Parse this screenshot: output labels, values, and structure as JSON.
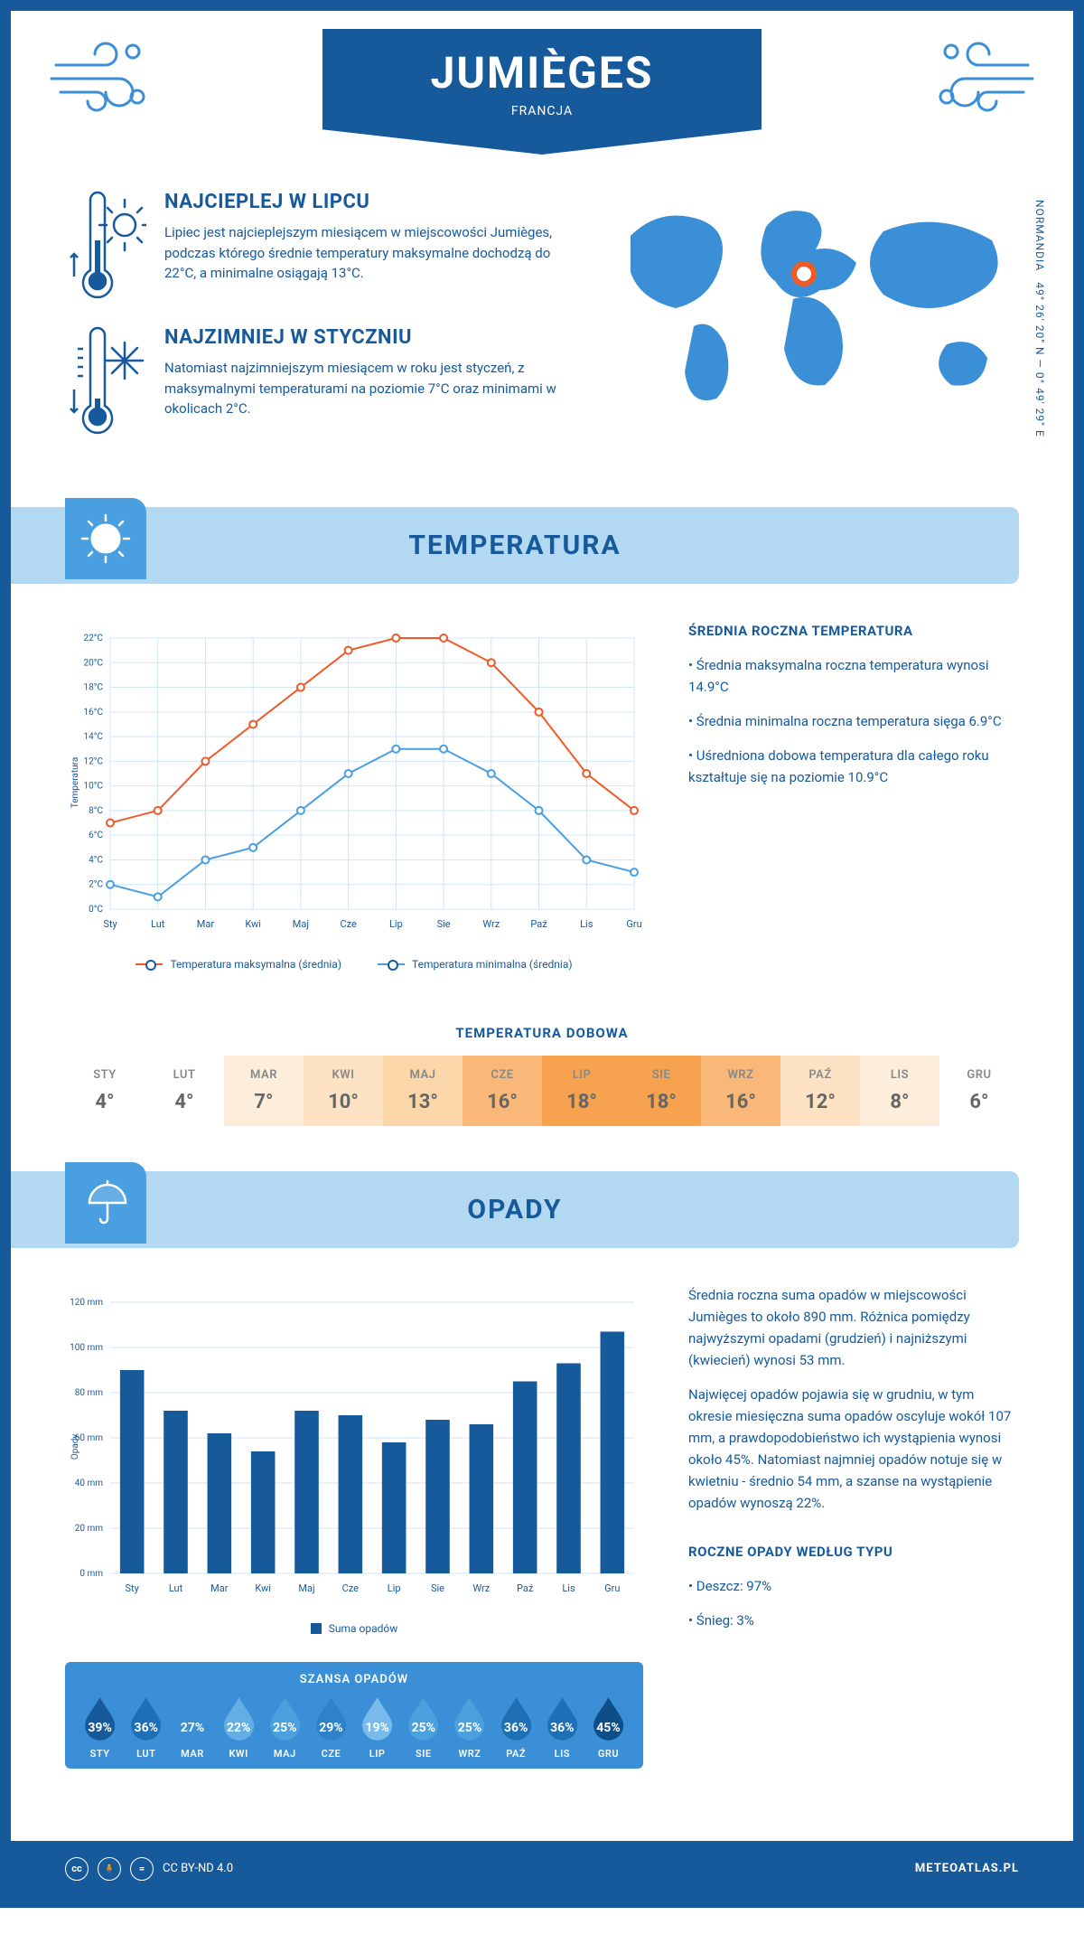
{
  "header": {
    "title": "JUMIÈGES",
    "country": "FRANCJA"
  },
  "intro": {
    "hot": {
      "title": "NAJCIEPLEJ W LIPCU",
      "text": "Lipiec jest najcieplejszym miesiącem w miejscowości Jumièges, podczas którego średnie temperatury maksymalne dochodzą do 22°C, a minimalne osiągają 13°C."
    },
    "cold": {
      "title": "NAJZIMNIEJ W STYCZNIU",
      "text": "Natomiast najzimniejszym miesiącem w roku jest styczeń, z maksymalnymi temperaturami na poziomie 7°C oraz minimami w okolicach 2°C."
    },
    "coords": "49° 26' 20\" N — 0° 49' 29\" E",
    "region": "NORMANDIA"
  },
  "section_temp": {
    "title": "TEMPERATURA",
    "side_title": "ŚREDNIA ROCZNA TEMPERATURA",
    "side_bullets": [
      "• Średnia maksymalna roczna temperatura wynosi 14.9°C",
      "• Średnia minimalna roczna temperatura sięga 6.9°C",
      "• Uśredniona dobowa temperatura dla całego roku kształtuje się na poziomie 10.9°C"
    ],
    "chart": {
      "type": "line",
      "months": [
        "Sty",
        "Lut",
        "Mar",
        "Kwi",
        "Maj",
        "Cze",
        "Lip",
        "Sie",
        "Wrz",
        "Paź",
        "Lis",
        "Gru"
      ],
      "max_values": [
        7,
        8,
        12,
        15,
        18,
        21,
        22,
        22,
        20,
        16,
        11,
        8
      ],
      "min_values": [
        2,
        1,
        4,
        5,
        8,
        11,
        13,
        13,
        11,
        8,
        4,
        3
      ],
      "max_color": "#ef5a28",
      "min_color": "#4a9fe0",
      "grid_color": "#d0e6f5",
      "axis_color": "#175a9c",
      "ylim": [
        0,
        22
      ],
      "ytick_step": 2,
      "ylabel": "Temperatura",
      "label_fontsize": 10,
      "legend_max": "Temperatura maksymalna (średnia)",
      "legend_min": "Temperatura minimalna (średnia)"
    },
    "daily": {
      "title": "TEMPERATURA DOBOWA",
      "months": [
        "STY",
        "LUT",
        "MAR",
        "KWI",
        "MAJ",
        "CZE",
        "LIP",
        "SIE",
        "WRZ",
        "PAŹ",
        "LIS",
        "GRU"
      ],
      "values": [
        "4°",
        "4°",
        "7°",
        "10°",
        "13°",
        "16°",
        "18°",
        "18°",
        "16°",
        "12°",
        "8°",
        "6°"
      ],
      "bg_colors": [
        "#ffffff",
        "#ffffff",
        "#fdeedb",
        "#fde3c4",
        "#fbd6a8",
        "#f9b877",
        "#f6a24f",
        "#f6a24f",
        "#f9b877",
        "#fde3c4",
        "#fdeedb",
        "#ffffff"
      ],
      "text_color": "#888"
    }
  },
  "section_rain": {
    "title": "OPADY",
    "side_p1": "Średnia roczna suma opadów w miejscowości Jumièges to około 890 mm. Różnica pomiędzy najwyższymi opadami (grudzień) i najniższymi (kwiecień) wynosi 53 mm.",
    "side_p2": "Najwięcej opadów pojawia się w grudniu, w tym okresie miesięczna suma opadów oscyluje wokół 107 mm, a prawdopodobieństwo ich wystąpienia wynosi około 45%. Natomiast najmniej opadów notuje się w kwietniu - średnio 54 mm, a szanse na wystąpienie opadów wynoszą 22%.",
    "type_title": "ROCZNE OPADY WEDŁUG TYPU",
    "type_bullets": [
      "• Deszcz: 97%",
      "• Śnieg: 3%"
    ],
    "chart": {
      "type": "bar",
      "months": [
        "Sty",
        "Lut",
        "Mar",
        "Kwi",
        "Maj",
        "Cze",
        "Lip",
        "Sie",
        "Wrz",
        "Paź",
        "Lis",
        "Gru"
      ],
      "values": [
        90,
        72,
        62,
        54,
        72,
        70,
        58,
        68,
        66,
        85,
        93,
        107
      ],
      "bar_color": "#175a9c",
      "grid_color": "#d0e6f5",
      "ylim": [
        0,
        120
      ],
      "ytick_step": 20,
      "ylabel": "Opady",
      "legend": "Suma opadów"
    },
    "chance": {
      "title": "SZANSA OPADÓW",
      "months": [
        "STY",
        "LUT",
        "MAR",
        "KWI",
        "MAJ",
        "CZE",
        "LIP",
        "SIE",
        "WRZ",
        "PAŹ",
        "LIS",
        "GRU"
      ],
      "values": [
        39,
        36,
        27,
        22,
        25,
        29,
        19,
        25,
        25,
        36,
        36,
        45
      ],
      "colors": [
        "#175a9c",
        "#1f6fb5",
        "#3a8fd6",
        "#62aee5",
        "#4ba1de",
        "#2d82ca",
        "#78baea",
        "#4ba1de",
        "#4ba1de",
        "#1f6fb5",
        "#1f6fb5",
        "#0e4e88"
      ]
    }
  },
  "footer": {
    "license": "CC BY-ND 4.0",
    "site": "METEOATLAS.PL"
  },
  "colors": {
    "primary": "#175a9c",
    "accent": "#4a9fe0",
    "band": "#b3d9f2"
  }
}
